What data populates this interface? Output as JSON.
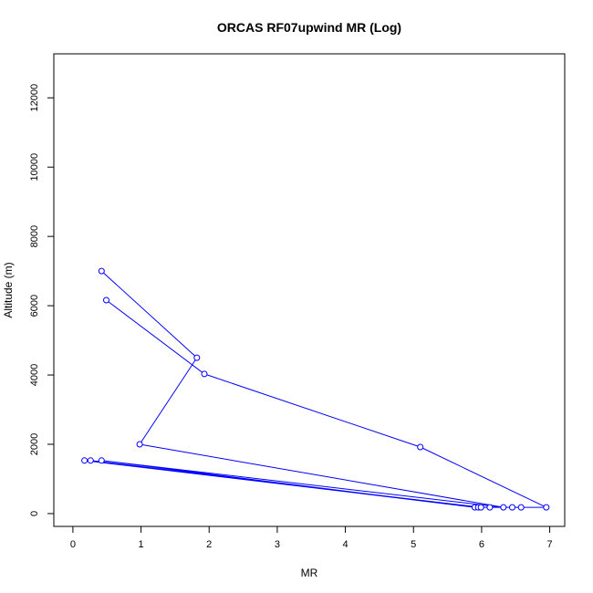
{
  "chart_data": {
    "type": "line",
    "title": "ORCAS RF07upwind MR (Log)",
    "xlabel": "MR",
    "ylabel": "Altitude (m)",
    "xlim": [
      -0.28,
      7.22
    ],
    "ylim": [
      -370,
      13270
    ],
    "xticks": [
      0,
      1,
      2,
      3,
      4,
      5,
      6,
      7
    ],
    "yticks": [
      0,
      2000,
      4000,
      6000,
      8000,
      10000,
      12000
    ],
    "grid": false,
    "legend": "none",
    "series": [
      {
        "color": "#0000ff",
        "marker": "open-circle",
        "points": [
          {
            "x": 0.42,
            "y": 7000
          },
          {
            "x": 1.82,
            "y": 4500
          },
          {
            "x": 0.98,
            "y": 2000
          },
          {
            "x": 6.32,
            "y": 180
          },
          {
            "x": 0.42,
            "y": 1530
          },
          {
            "x": 5.9,
            "y": 180
          },
          {
            "x": 0.26,
            "y": 1530
          },
          {
            "x": 5.95,
            "y": 180
          },
          {
            "x": 0.17,
            "y": 1530
          },
          {
            "x": 5.99,
            "y": 180
          },
          {
            "x": 6.12,
            "y": 180
          },
          {
            "x": 6.45,
            "y": 180
          },
          {
            "x": 6.58,
            "y": 180
          },
          {
            "x": 6.95,
            "y": 180
          },
          {
            "x": 5.1,
            "y": 1920
          },
          {
            "x": 1.93,
            "y": 4030
          },
          {
            "x": 0.49,
            "y": 6160
          }
        ]
      }
    ]
  }
}
